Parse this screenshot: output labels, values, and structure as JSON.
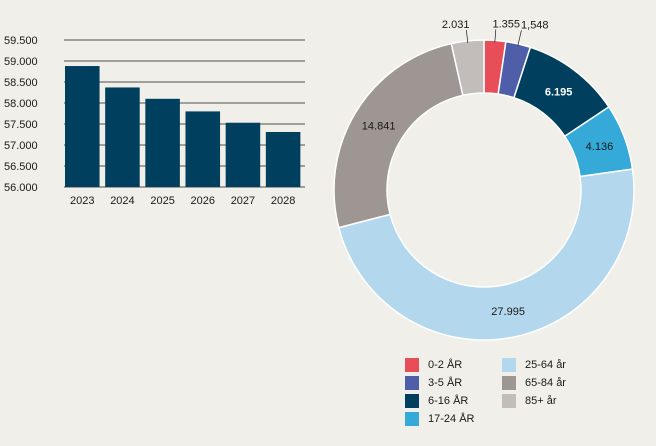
{
  "chart_data": [
    {
      "type": "bar",
      "categories": [
        "2023",
        "2024",
        "2025",
        "2026",
        "2027",
        "2028"
      ],
      "values": [
        58.88,
        58.37,
        58.1,
        57.8,
        57.53,
        57.31
      ],
      "ylim": [
        56.0,
        59.5
      ],
      "yticks": [
        "56.000",
        "56.500",
        "57.000",
        "57.500",
        "58.000",
        "58.500",
        "59.000",
        "59.500"
      ],
      "ytick_values": [
        56.0,
        56.5,
        57.0,
        57.5,
        58.0,
        58.5,
        59.0,
        59.5
      ],
      "grid": true,
      "color": "#003f5e"
    },
    {
      "type": "pie",
      "donut": true,
      "labels": [
        "0-2 ÅR",
        "3-5 ÅR",
        "6-16 ÅR",
        "17-24 ÅR",
        "25-64 år",
        "65-84 år",
        "85+ år"
      ],
      "values": [
        1355,
        1548,
        6195,
        4136,
        27995,
        14841,
        2031
      ],
      "value_labels": [
        "1.355",
        "1,548",
        "6.195",
        "4.136",
        "27.995",
        "14.841",
        "2.031"
      ],
      "colors": [
        "#e84e57",
        "#4f5ea8",
        "#003f5e",
        "#35aad8",
        "#b3d8ee",
        "#9d9693",
        "#c2bdbb"
      ],
      "legend_position": "bottom"
    }
  ]
}
